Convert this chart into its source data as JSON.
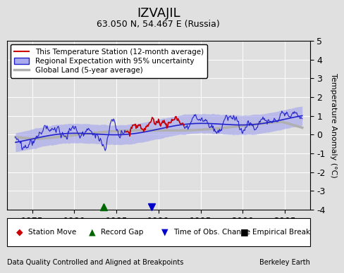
{
  "title": "IZVAJIL",
  "subtitle": "63.050 N, 54.467 E (Russia)",
  "footer_left": "Data Quality Controlled and Aligned at Breakpoints",
  "footer_right": "Berkeley Earth",
  "ylim": [
    -4,
    5
  ],
  "xlim": [
    1972,
    2008
  ],
  "yticks": [
    -4,
    -3,
    -2,
    -1,
    0,
    1,
    2,
    3,
    4,
    5
  ],
  "xticks": [
    1975,
    1980,
    1985,
    1990,
    1995,
    2000,
    2005
  ],
  "ylabel": "Temperature Anomaly (°C)",
  "bg_color": "#e0e0e0",
  "plot_bg_color": "#e0e0e0",
  "station_color": "#cc0000",
  "regional_color": "#2222cc",
  "regional_fill_color": "#aaaaee",
  "global_color": "#b0b0b0",
  "legend_items": [
    "This Temperature Station (12-month average)",
    "Regional Expectation with 95% uncertainty",
    "Global Land (5-year average)"
  ],
  "record_gap_x": 1983.5,
  "obs_change_x": 1989.2
}
